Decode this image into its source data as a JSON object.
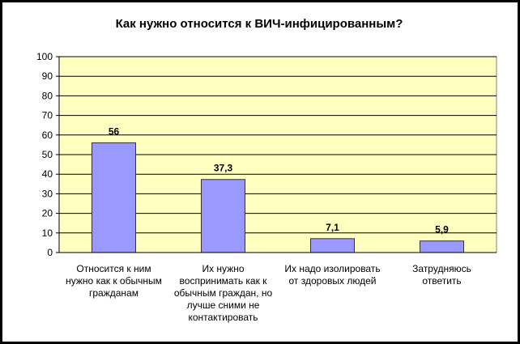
{
  "chart_data": {
    "type": "bar",
    "title": "Как нужно относится к ВИЧ-инфицированным?",
    "categories": [
      "Относится к ним нужно как к обычным гражданам",
      "Их нужно воспринимать как к обычным граждан, но лучше сними не контактировать",
      "Их надо изолировать от здоровых людей",
      "Затрудняюсь ответить"
    ],
    "values": [
      56,
      37.3,
      7.1,
      5.9
    ],
    "value_labels": [
      "56",
      "37,3",
      "7,1",
      "5,9"
    ],
    "color": "#9999ff",
    "ylim": [
      0,
      100
    ],
    "yticks": [
      0,
      10,
      20,
      30,
      40,
      50,
      60,
      70,
      80,
      90,
      100
    ],
    "grid": true
  }
}
